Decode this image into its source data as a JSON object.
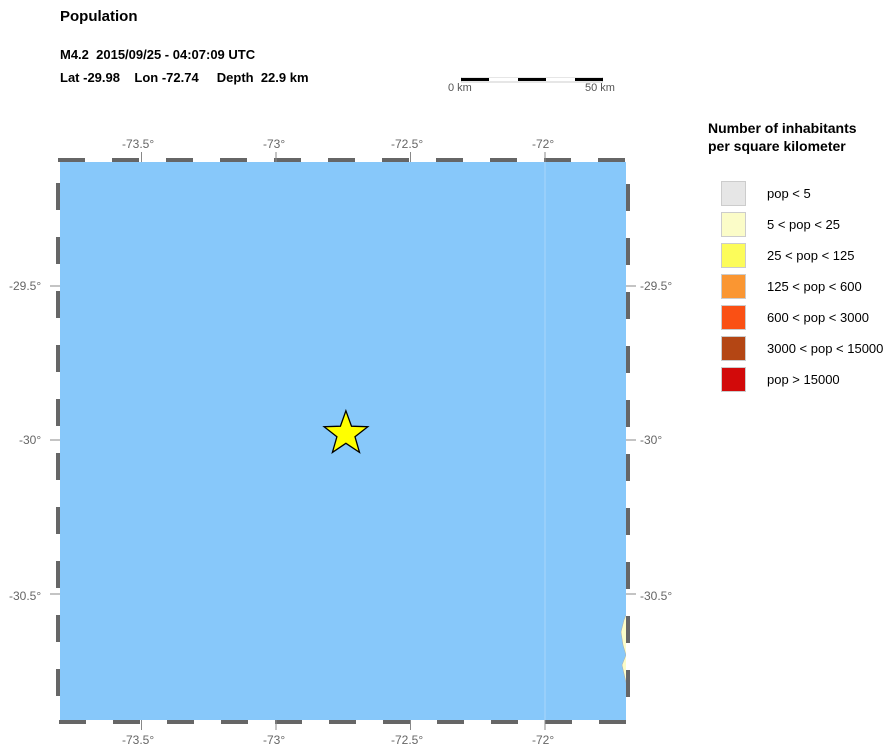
{
  "title": "Population",
  "event": {
    "line1": "M4.2  2015/09/25 - 04:07:09 UTC",
    "line2": "Lat -29.98    Lon -72.74     Depth  22.9 km",
    "lat": -29.98,
    "lon": -72.74,
    "marker": "star-icon",
    "marker_color": "#ffff00"
  },
  "scale_bar": {
    "start_label": "0 km",
    "end_label": "50 km"
  },
  "map": {
    "water_color": "#87c8fa",
    "lon_ticks": [
      "-73.5°",
      "-73°",
      "-72.5°",
      "-72°"
    ],
    "lat_ticks": [
      "-29.5°",
      "-30°",
      "-30.5°"
    ]
  },
  "legend": {
    "title_line1": "Number of inhabitants",
    "title_line2": "per square kilometer",
    "items": [
      {
        "label": "pop < 5",
        "color": "#e6e6e6"
      },
      {
        "label": "5 < pop < 25",
        "color": "#fbfcc8"
      },
      {
        "label": "25 < pop < 125",
        "color": "#fcfc5a"
      },
      {
        "label": "125 < pop < 600",
        "color": "#fa9632"
      },
      {
        "label": "600 < pop < 3000",
        "color": "#fa5014"
      },
      {
        "label": "3000 < pop < 15000",
        "color": "#b44614"
      },
      {
        "label": "pop > 15000",
        "color": "#d20a0a"
      }
    ]
  }
}
